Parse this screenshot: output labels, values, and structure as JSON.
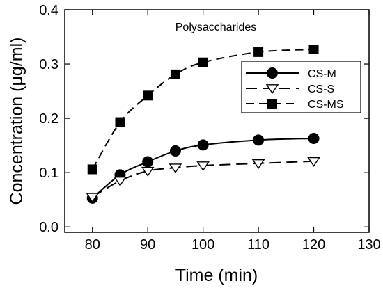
{
  "chart_data": {
    "type": "line",
    "title": "",
    "annotation": "Polysaccharides",
    "xlabel": "Time (min)",
    "ylabel": "Concentration (μg/ml)",
    "xlim": [
      75,
      130
    ],
    "ylim": [
      -0.01,
      0.4
    ],
    "x_ticks": [
      80,
      90,
      100,
      110,
      120,
      130
    ],
    "y_ticks": [
      0.0,
      0.1,
      0.2,
      0.3,
      0.4
    ],
    "x_tick_labels": [
      "80",
      "90",
      "100",
      "110",
      "120",
      "130"
    ],
    "y_tick_labels": [
      "0.0",
      "0.1",
      "0.2",
      "0.3",
      "0.4"
    ],
    "grid": false,
    "legend_position": "upper-right",
    "x": [
      80,
      85,
      90,
      95,
      100,
      110,
      120
    ],
    "series": [
      {
        "name": "CS-M",
        "values": [
          0.053,
          0.096,
          0.12,
          0.14,
          0.151,
          0.16,
          0.163
        ],
        "marker": "filled-circle",
        "line_style": "solid",
        "color": "#000000"
      },
      {
        "name": "CS-S",
        "values": [
          0.055,
          0.085,
          0.103,
          0.109,
          0.113,
          0.117,
          0.121
        ],
        "marker": "open-triangle-down",
        "line_style": "long-dash",
        "color": "#000000"
      },
      {
        "name": "CS-MS",
        "values": [
          0.106,
          0.193,
          0.242,
          0.281,
          0.303,
          0.322,
          0.327
        ],
        "marker": "filled-square",
        "line_style": "dashed",
        "color": "#000000"
      }
    ]
  }
}
